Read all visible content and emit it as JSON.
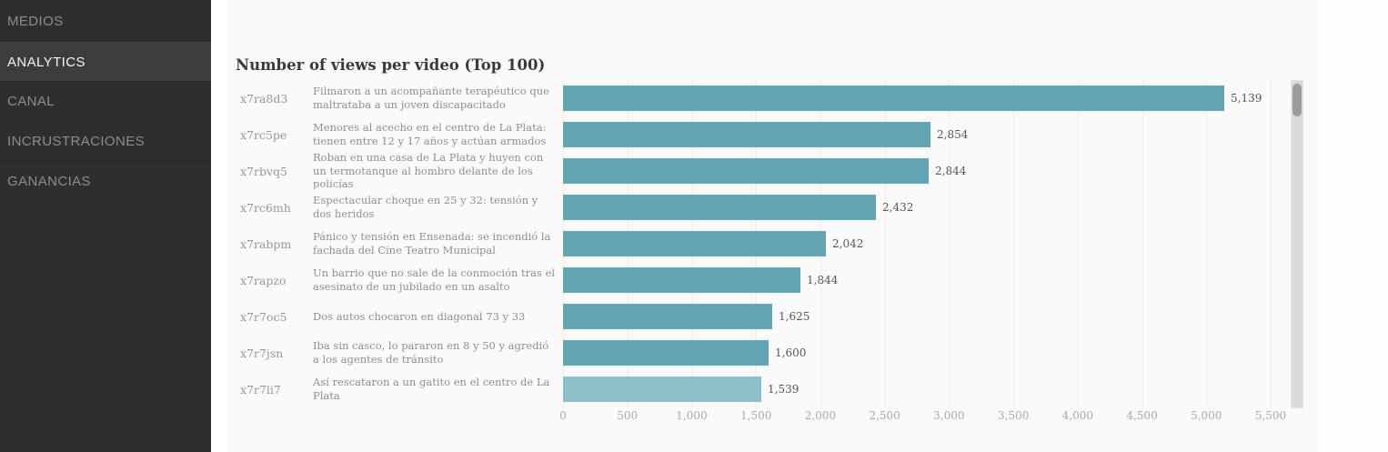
{
  "sidebar": {
    "items": [
      {
        "label": "MEDIOS",
        "active": false
      },
      {
        "label": "ANALYTICS",
        "active": true
      },
      {
        "label": "CANAL",
        "active": false
      },
      {
        "label": "INCRUSTRACIONES",
        "active": false
      },
      {
        "label": "GANANCIAS",
        "active": false
      }
    ]
  },
  "main": {
    "title": "Number of views per video (Top 100)"
  },
  "chart_data": {
    "type": "bar",
    "orientation": "horizontal",
    "title": "Number of views per video (Top 100)",
    "rows": [
      {
        "id": "x7ra8d3",
        "label": "Filmaron a un acompañante terapéutico que maltrataba a un joven discapacitado",
        "value": 5139,
        "value_label": "5,139",
        "highlight": false
      },
      {
        "id": "x7rc5pe",
        "label": "Menores al acecho en el centro de La Plata: tienen entre 12 y 17 años y actúan armados",
        "value": 2854,
        "value_label": "2,854",
        "highlight": false
      },
      {
        "id": "x7rbvq5",
        "label": "Roban en una casa de La Plata y huyen con un termotanque al hombro delante de los policías",
        "value": 2844,
        "value_label": "2,844",
        "highlight": false
      },
      {
        "id": "x7rc6mh",
        "label": "Espectacular choque en 25 y 32: tensión y dos heridos",
        "value": 2432,
        "value_label": "2,432",
        "highlight": false
      },
      {
        "id": "x7rabpm",
        "label": "Pánico y tensión en Ensenada: se incendió la fachada del Cine Teatro Municipal",
        "value": 2042,
        "value_label": "2,042",
        "highlight": false
      },
      {
        "id": "x7rapzo",
        "label": "Un barrio que no sale de la conmoción tras el asesinato de un jubilado en un asalto",
        "value": 1844,
        "value_label": "1,844",
        "highlight": false
      },
      {
        "id": "x7r7oc5",
        "label": "Dos autos chocaron en diagonal 73 y 33",
        "value": 1625,
        "value_label": "1,625",
        "highlight": false
      },
      {
        "id": "x7r7jsn",
        "label": "Iba sin casco, lo pararon en 8 y 50 y agredió a los agentes de tránsito",
        "value": 1600,
        "value_label": "1,600",
        "highlight": false
      },
      {
        "id": "x7r7li7",
        "label": "Así rescataron a un gatito en el centro de La Plata",
        "value": 1539,
        "value_label": "1,539",
        "highlight": true
      }
    ],
    "xlim": [
      0,
      5500
    ],
    "x_ticks": [
      "0",
      "500",
      "1,000",
      "1,500",
      "2,000",
      "2,500",
      "3,000",
      "3,500",
      "4,000",
      "4,500",
      "5,000",
      "5,500"
    ],
    "grid": true,
    "bar_color": "#63a5b2",
    "highlight_bar_color": "#8cc0ca"
  },
  "colors": {
    "sidebar_bg": "#2e2e2e",
    "sidebar_active_bg": "#3d3d3d",
    "main_bg": "#fafafa",
    "bar": "#63a5b2",
    "bar_highlight": "#8cc0ca",
    "gridline": "#ededed"
  }
}
